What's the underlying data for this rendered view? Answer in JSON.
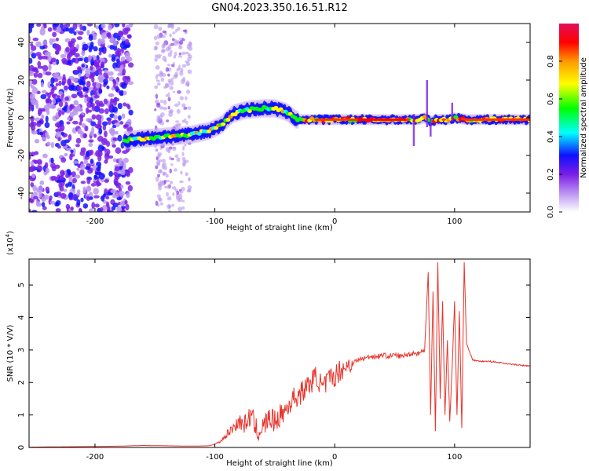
{
  "figure": {
    "title": "GN04.2023.350.16.51.R12"
  },
  "chart_data": [
    {
      "type": "heatmap",
      "xlabel": "Height of straight line (km)",
      "ylabel": "Frequency (Hz)",
      "xlim": [
        -255,
        163
      ],
      "ylim": [
        -50,
        50
      ],
      "xticks": [
        -200,
        -100,
        0,
        100
      ],
      "yticks": [
        -40,
        -20,
        0,
        20,
        40
      ],
      "xtick_labels": [
        "-200",
        "-100",
        "0",
        "100"
      ],
      "ytick_labels": [
        "-40",
        "-20",
        "0",
        "20",
        "40"
      ],
      "colorbar": {
        "label": "Normalized spectral amplitude",
        "range": [
          0,
          1
        ],
        "ticks": [
          "0.0",
          "0.2",
          "0.4",
          "0.6",
          "0.8"
        ],
        "tick_values": [
          0,
          0.2,
          0.4,
          0.6,
          0.8
        ],
        "colormap": [
          "#ffffff",
          "#b894f0",
          "#7a1ee6",
          "#1010ff",
          "#00ffff",
          "#00ff00",
          "#ffff00",
          "#ff9900",
          "#ff0000",
          "#e0105a"
        ]
      },
      "ridge": {
        "x": [
          -175,
          -160,
          -140,
          -120,
          -105,
          -95,
          -85,
          -75,
          -60,
          -50,
          -40,
          -32,
          -20,
          0,
          20,
          40,
          60,
          70,
          75,
          80,
          85,
          95,
          100,
          110,
          130,
          160
        ],
        "y": [
          -12,
          -11,
          -10,
          -9,
          -7,
          -4,
          2,
          4,
          5,
          5,
          3,
          -1,
          -1,
          -1,
          -1,
          -1,
          -1,
          -1,
          0,
          -2,
          -1,
          -1,
          0,
          -1,
          -1,
          -1
        ]
      },
      "grid": false,
      "legend": "colorbar-right"
    },
    {
      "type": "line",
      "xlabel": "Height of straight line (km)",
      "ylabel": "SNR (10 * V/V)",
      "scale_label": "(x10",
      "scale_exponent": "4",
      "scale_suffix": ")",
      "xlim": [
        -255,
        163
      ],
      "ylim": [
        0,
        5.8
      ],
      "xticks": [
        -200,
        -100,
        0,
        100
      ],
      "yticks": [
        0,
        1,
        2,
        3,
        4,
        5
      ],
      "xtick_labels": [
        "-200",
        "-100",
        "0",
        "100"
      ],
      "ytick_labels": [
        "0",
        "1",
        "2",
        "3",
        "4",
        "5"
      ],
      "series": [
        {
          "color": "#e8342c",
          "x": [
            -255,
            -230,
            -200,
            -180,
            -160,
            -140,
            -120,
            -105,
            -100,
            -95,
            -90,
            -85,
            -80,
            -75,
            -70,
            -65,
            -60,
            -55,
            -50,
            -45,
            -40,
            -35,
            -30,
            -25,
            -20,
            -15,
            -10,
            -5,
            0,
            5,
            10,
            15,
            20,
            25,
            30,
            35,
            40,
            45,
            50,
            55,
            60,
            65,
            70,
            75,
            78,
            80,
            82,
            84,
            86,
            88,
            90,
            92,
            94,
            96,
            98,
            100,
            102,
            104,
            106,
            108,
            110,
            115,
            120,
            130,
            140,
            150,
            163
          ],
          "y": [
            0.01,
            0.02,
            0.03,
            0.04,
            0.06,
            0.05,
            0.04,
            0.05,
            0.1,
            0.2,
            0.4,
            0.6,
            0.8,
            0.7,
            1.0,
            0.5,
            0.6,
            0.9,
            0.8,
            1.0,
            1.2,
            1.5,
            1.6,
            1.8,
            2.0,
            2.2,
            1.8,
            2.1,
            2.2,
            2.4,
            2.5,
            2.6,
            2.7,
            2.75,
            2.8,
            2.8,
            2.85,
            2.8,
            2.85,
            2.8,
            2.85,
            2.9,
            2.9,
            3.0,
            5.4,
            1.0,
            4.8,
            0.5,
            5.7,
            1.5,
            4.5,
            1.0,
            3.3,
            0.8,
            2.5,
            4.5,
            1.0,
            4.2,
            0.6,
            5.7,
            3.2,
            2.7,
            2.65,
            2.65,
            2.6,
            2.55,
            2.5
          ]
        }
      ],
      "grid": false
    }
  ]
}
